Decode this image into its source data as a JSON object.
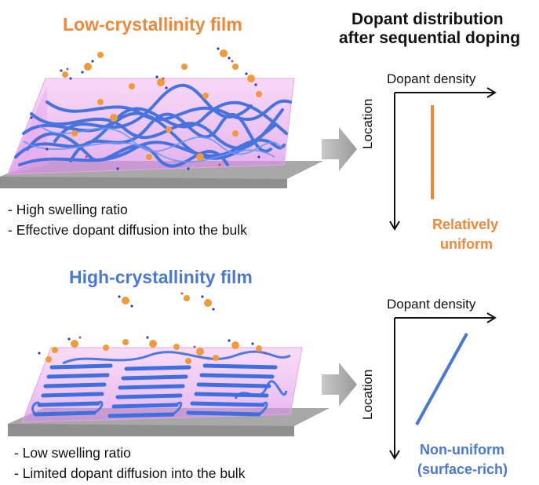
{
  "top_panel": {
    "title": "Low-crystallinity film",
    "title_color": "#f0883a",
    "bullets": [
      "- High swelling ratio",
      "- Effective dopant diffusion into the bulk"
    ]
  },
  "bottom_panel": {
    "title": "High-crystallinity film",
    "title_color": "#4a78d6",
    "bullets": [
      "- Low swelling ratio",
      "- Limited dopant diffusion into the bulk"
    ]
  },
  "right_title": [
    "Dopant distribution",
    "after sequential doping"
  ],
  "graphs": [
    {
      "x_axis": "Dopant density",
      "y_axis": "Location",
      "description": [
        "Relatively",
        "uniform"
      ],
      "color": "#f0883a"
    },
    {
      "x_axis": "Dopant density",
      "y_axis": "Location",
      "description": [
        "Non-uniform",
        "(surface-rich)"
      ],
      "color": "#4a78d6"
    }
  ]
}
